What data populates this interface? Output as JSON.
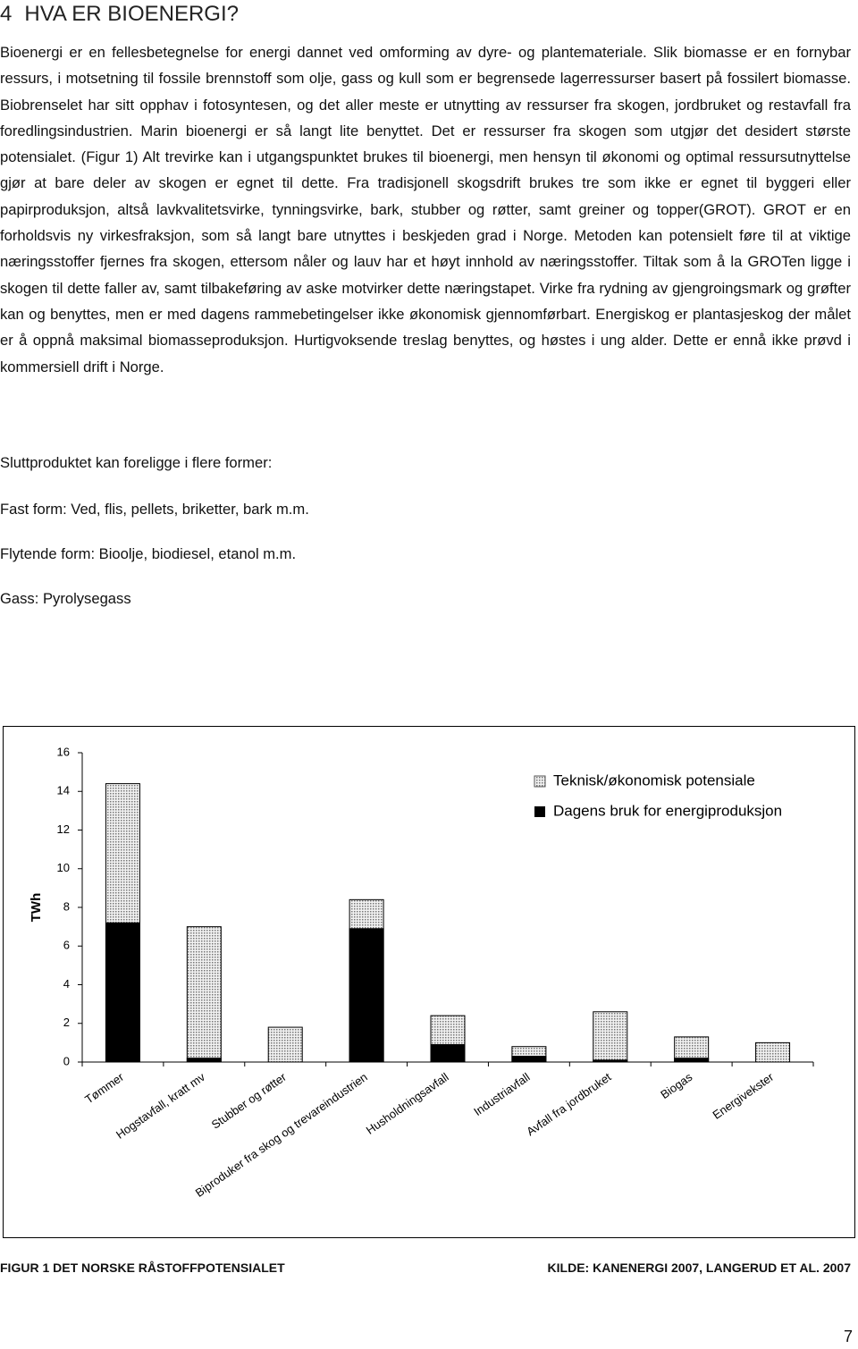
{
  "heading": {
    "number": "4",
    "title": "HVA ER BIOENERGI?"
  },
  "paragraph": "Bioenergi er en fellesbetegnelse for energi dannet ved omforming av dyre- og plantemateriale. Slik biomasse er en fornybar ressurs, i motsetning til fossile brennstoff som olje, gass og kull som er begrensede lagerressurser basert på fossilert biomasse. Biobrenselet har sitt opphav i fotosyntesen, og det aller meste er utnytting av ressurser fra skogen, jordbruket og restavfall fra foredlingsindustrien. Marin bioenergi er så langt lite benyttet. Det er ressurser fra skogen som utgjør det desidert største potensialet. (Figur 1) Alt trevirke kan i utgangspunktet brukes til bioenergi, men hensyn til økonomi og optimal ressursutnyttelse gjør at bare deler av skogen er egnet til dette. Fra tradisjonell skogsdrift brukes tre som ikke er egnet til byggeri eller papirproduksjon, altså lavkvalitetsvirke, tynningsvirke, bark, stubber og røtter, samt greiner og topper(GROT). GROT er en forholdsvis ny virkesfraksjon, som så langt bare utnyttes i beskjeden grad i Norge. Metoden kan potensielt føre til at viktige næringsstoffer fjernes fra skogen, ettersom nåler og lauv har et høyt innhold av næringsstoffer. Tiltak som å la GROTen ligge i skogen til dette faller av, samt tilbakeføring av aske motvirker dette næringstapet. Virke fra rydning av gjengroingsmark og grøfter kan og benyttes, men er med dagens rammebetingelser ikke økonomisk gjennomførbart. Energiskog er plantasjeskog der målet er å oppnå maksimal biomasseproduksjon. Hurtigvoksende treslag benyttes, og høstes i ung alder. Dette er ennå ikke prøvd i kommersiell drift i Norge.",
  "lines": [
    "Sluttproduktet kan foreligge i flere former:",
    "Fast form: Ved, flis, pellets, briketter, bark m.m.",
    "Flytende form: Bioolje, biodiesel, etanol m.m.",
    "Gass: Pyrolysegass"
  ],
  "chart_data": {
    "type": "bar",
    "ylabel": "TWh",
    "categories": [
      "Tømmer",
      "Hogstavfall, kratt mv",
      "Stubber og røtter",
      "Biproduker fra skog og trevareindustrien",
      "Husholdningsavfall",
      "Industriavfall",
      "Avfall fra jordbruket",
      "Biogas",
      "Energivekster"
    ],
    "series": [
      {
        "name": "Teknisk/økonomisk potensiale",
        "color": "#bbbbbb",
        "values": [
          14.4,
          7.0,
          1.8,
          8.4,
          2.4,
          0.8,
          2.6,
          1.3,
          1.0
        ]
      },
      {
        "name": "Dagens bruk for energiproduksjon",
        "color": "#000000",
        "values": [
          7.2,
          0.2,
          0,
          6.9,
          0.9,
          0.3,
          0.1,
          0.2,
          0
        ]
      }
    ],
    "ylim": [
      0,
      16
    ],
    "yticks": [
      0,
      2,
      4,
      6,
      8,
      10,
      12,
      14,
      16
    ],
    "grid": false,
    "legend": "top-right"
  },
  "caption": {
    "figure": "FIGUR 1 DET NORSKE RÅSTOFFPOTENSIALET",
    "source": "KILDE: KANENERGI 2007, LANGERUD ET AL. 2007"
  },
  "page_number": "7"
}
